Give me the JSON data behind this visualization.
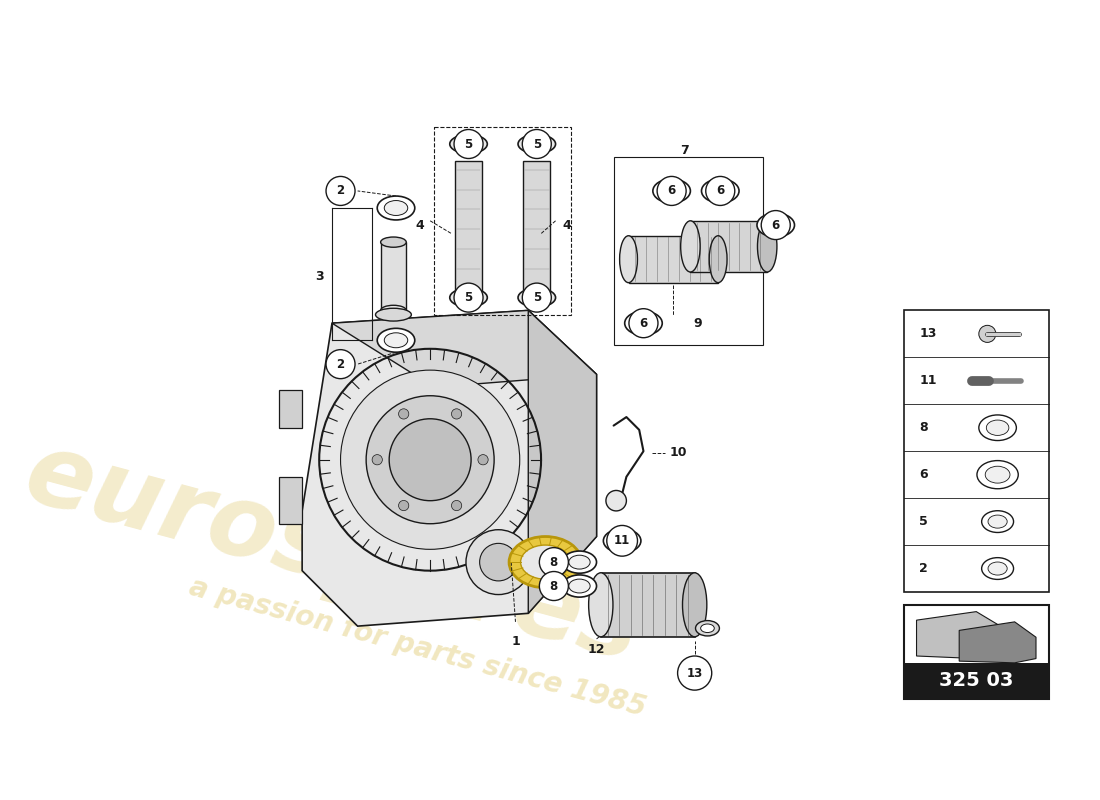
{
  "bg_color": "#ffffff",
  "line_color": "#1a1a1a",
  "watermark_color": "#c8a000",
  "part_number_box": "325 03",
  "part_number_bg": "#1a1a1a",
  "part_number_fg": "#ffffff",
  "sidebar_items": [
    {
      "num": "13",
      "shape": "bolt"
    },
    {
      "num": "11",
      "shape": "pin"
    },
    {
      "num": "8",
      "shape": "ring"
    },
    {
      "num": "6",
      "shape": "ring"
    },
    {
      "num": "5",
      "shape": "ring"
    },
    {
      "num": "2",
      "shape": "ring"
    }
  ]
}
